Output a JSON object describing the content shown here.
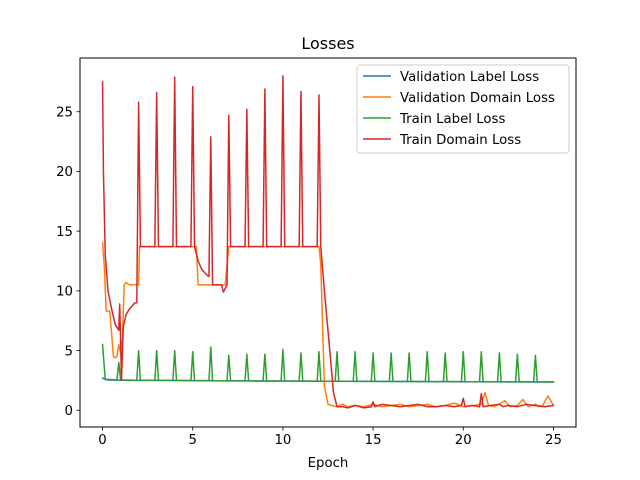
{
  "chart_data": {
    "type": "line",
    "title": "Losses",
    "xlabel": "Epoch",
    "ylabel": "",
    "xlim": [
      -1.25,
      26.25
    ],
    "ylim": [
      -1.4,
      29.5
    ],
    "xticks": [
      0,
      5,
      10,
      15,
      20,
      25
    ],
    "yticks": [
      0,
      5,
      10,
      15,
      20,
      25
    ],
    "legend_position": "top-right",
    "series": [
      {
        "name": "Validation Label Loss",
        "color": "#1f77b4",
        "x": [
          0,
          0.2,
          1,
          2,
          3,
          4,
          5,
          6,
          7,
          8,
          9,
          10,
          11,
          12,
          13,
          14,
          15,
          16,
          17,
          18,
          19,
          20,
          21,
          22,
          23,
          24,
          25
        ],
        "y": [
          2.7,
          2.55,
          2.52,
          2.5,
          2.5,
          2.49,
          2.48,
          2.47,
          2.46,
          2.46,
          2.45,
          2.45,
          2.44,
          2.43,
          2.43,
          2.42,
          2.42,
          2.41,
          2.41,
          2.4,
          2.4,
          2.39,
          2.39,
          2.38,
          2.38,
          2.37,
          2.37
        ]
      },
      {
        "name": "Validation Domain Loss",
        "color": "#ff7f0e",
        "x": [
          0,
          0.1,
          0.2,
          0.4,
          0.5,
          0.6,
          0.7,
          0.8,
          0.9,
          1.0,
          1.1,
          1.2,
          1.3,
          1.5,
          1.7,
          1.8,
          1.9,
          2.0,
          2.05,
          2.3,
          2.6,
          3.0,
          3.5,
          4.0,
          4.5,
          5.0,
          5.2,
          5.3,
          5.5,
          6.0,
          6.5,
          6.8,
          7.0,
          7.5,
          8.0,
          9.0,
          10.0,
          11.0,
          12.0,
          12.1,
          12.3,
          12.5,
          12.7,
          13.0,
          13.3,
          13.6,
          14.0,
          14.5,
          15.0,
          15.5,
          16.0,
          16.5,
          17.0,
          17.5,
          18.0,
          18.5,
          19.0,
          19.5,
          20.0,
          20.5,
          21.0,
          21.2,
          21.4,
          21.7,
          22.0,
          22.3,
          22.6,
          23.0,
          23.3,
          23.6,
          24.0,
          24.2,
          24.4,
          24.7,
          25.0
        ],
        "y": [
          14.0,
          12.0,
          8.3,
          8.3,
          6.5,
          4.5,
          4.4,
          4.5,
          5.5,
          4.8,
          6.0,
          10.5,
          10.7,
          10.5,
          10.5,
          10.5,
          10.5,
          10.5,
          13.7,
          13.7,
          13.7,
          13.7,
          13.7,
          13.7,
          13.7,
          13.7,
          13.7,
          10.5,
          10.5,
          10.5,
          10.5,
          10.5,
          13.7,
          13.7,
          13.7,
          13.7,
          13.7,
          13.7,
          13.7,
          12.2,
          2.0,
          0.5,
          0.4,
          0.3,
          0.5,
          0.3,
          0.4,
          0.3,
          0.5,
          0.3,
          0.4,
          0.5,
          0.3,
          0.4,
          0.5,
          0.3,
          0.4,
          0.6,
          0.3,
          0.4,
          0.5,
          1.5,
          0.4,
          0.3,
          0.5,
          0.8,
          0.3,
          0.4,
          0.9,
          0.3,
          0.5,
          0.3,
          0.4,
          1.2,
          0.4
        ]
      },
      {
        "name": "Train Label Loss",
        "color": "#2ca02c",
        "x": [
          0,
          0.15,
          0.8,
          0.9,
          1.0,
          1.8,
          1.9,
          2.0,
          2.1,
          2.8,
          2.9,
          3.0,
          3.1,
          3.8,
          3.9,
          4.0,
          4.1,
          4.8,
          4.9,
          5.0,
          5.1,
          5.8,
          5.9,
          6.0,
          6.1,
          6.8,
          6.9,
          7.0,
          7.1,
          7.8,
          7.9,
          8.0,
          8.1,
          8.8,
          8.9,
          9.0,
          9.1,
          9.8,
          9.9,
          10.0,
          10.1,
          10.8,
          10.9,
          11.0,
          11.1,
          11.8,
          11.9,
          12.0,
          12.1,
          12.8,
          12.9,
          13.0,
          13.1,
          13.8,
          13.9,
          14.0,
          14.1,
          14.8,
          14.9,
          15.0,
          15.1,
          15.8,
          15.9,
          16.0,
          16.1,
          16.8,
          16.9,
          17.0,
          17.1,
          17.8,
          17.9,
          18.0,
          18.1,
          18.8,
          18.9,
          19.0,
          19.1,
          19.8,
          19.9,
          20.0,
          20.1,
          20.8,
          20.9,
          21.0,
          21.1,
          21.8,
          21.9,
          22.0,
          22.1,
          22.8,
          22.9,
          23.0,
          23.1,
          23.8,
          23.9,
          24.0,
          24.1,
          25.0
        ],
        "y": [
          5.5,
          2.6,
          2.55,
          4.0,
          2.55,
          2.52,
          2.52,
          5.0,
          2.52,
          2.51,
          2.51,
          5.0,
          2.51,
          2.5,
          2.5,
          5.0,
          2.5,
          2.49,
          2.49,
          4.9,
          2.49,
          2.48,
          2.48,
          5.3,
          2.48,
          2.47,
          2.47,
          4.6,
          2.47,
          2.46,
          2.46,
          4.7,
          2.46,
          2.45,
          2.45,
          4.7,
          2.45,
          2.45,
          2.45,
          5.1,
          2.45,
          2.44,
          2.44,
          4.8,
          2.44,
          2.44,
          2.44,
          4.9,
          2.44,
          2.43,
          2.43,
          4.9,
          2.43,
          2.43,
          2.43,
          4.9,
          2.43,
          2.42,
          2.42,
          4.8,
          2.42,
          2.42,
          2.42,
          4.8,
          2.42,
          2.41,
          2.41,
          4.8,
          2.41,
          2.41,
          2.41,
          4.9,
          2.41,
          2.4,
          2.4,
          4.8,
          2.4,
          2.4,
          2.4,
          4.9,
          2.4,
          2.39,
          2.39,
          4.9,
          2.39,
          2.39,
          2.39,
          4.8,
          2.39,
          2.38,
          2.38,
          4.7,
          2.38,
          2.38,
          2.38,
          4.6,
          2.38,
          2.37
        ]
      },
      {
        "name": "Train Domain Loss",
        "color": "#d62728",
        "x": [
          0,
          0.05,
          0.15,
          0.3,
          0.5,
          0.7,
          0.9,
          0.95,
          1.0,
          1.05,
          1.15,
          1.3,
          1.5,
          1.8,
          1.9,
          2.0,
          2.1,
          2.9,
          3.0,
          3.1,
          3.9,
          4.0,
          4.1,
          4.9,
          5.0,
          5.1,
          5.3,
          5.5,
          5.8,
          5.9,
          6.0,
          6.1,
          6.4,
          6.6,
          6.7,
          6.9,
          7.0,
          7.1,
          7.9,
          8.0,
          8.1,
          8.9,
          9.0,
          9.1,
          9.9,
          10.0,
          10.1,
          10.9,
          11.0,
          11.1,
          11.9,
          12.0,
          12.1,
          12.3,
          12.6,
          12.8,
          13.0,
          13.3,
          13.6,
          14.0,
          14.5,
          14.9,
          15.0,
          15.1,
          15.5,
          16.0,
          16.5,
          17.0,
          17.5,
          18.0,
          18.5,
          19.0,
          19.5,
          19.9,
          20.0,
          20.1,
          20.5,
          20.9,
          21.0,
          21.1,
          21.5,
          22.0,
          22.2,
          22.5,
          23.0,
          23.5,
          24.0,
          24.5,
          25.0
        ],
        "y": [
          27.5,
          20.0,
          13.0,
          10.0,
          8.5,
          7.2,
          6.7,
          8.9,
          6.0,
          2.5,
          7.0,
          8.0,
          8.5,
          9.0,
          9.0,
          25.8,
          13.7,
          13.7,
          26.6,
          13.7,
          13.7,
          27.9,
          13.7,
          13.7,
          27.1,
          13.7,
          12.5,
          11.8,
          11.3,
          11.2,
          22.9,
          10.5,
          10.5,
          10.5,
          9.9,
          10.5,
          24.7,
          13.7,
          13.7,
          25.2,
          13.7,
          13.7,
          26.9,
          13.7,
          13.7,
          28.0,
          13.7,
          13.7,
          26.7,
          13.7,
          13.7,
          26.4,
          13.7,
          10.0,
          5.0,
          1.5,
          0.3,
          0.3,
          0.2,
          0.4,
          0.2,
          0.3,
          0.7,
          0.3,
          0.5,
          0.4,
          0.3,
          0.4,
          0.5,
          0.3,
          0.3,
          0.4,
          0.3,
          0.4,
          1.0,
          0.3,
          0.4,
          0.3,
          1.4,
          0.3,
          0.4,
          0.5,
          0.3,
          0.4,
          0.3,
          0.5,
          0.4,
          0.3,
          0.4
        ]
      }
    ]
  }
}
